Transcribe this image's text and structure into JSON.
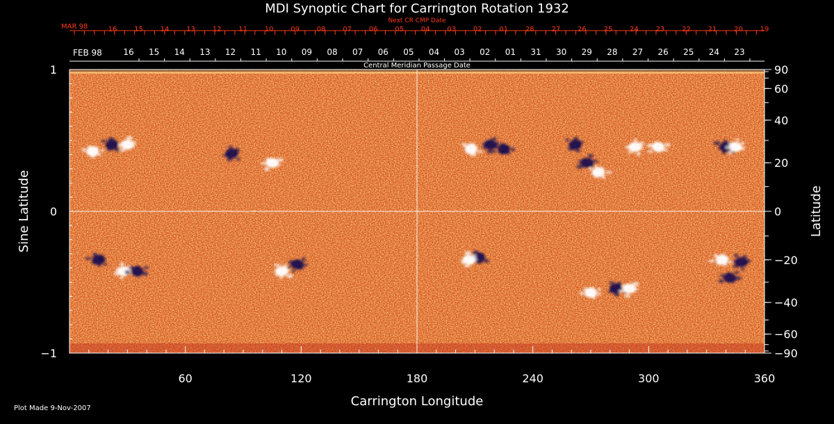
{
  "chart_data": {
    "type": "heatmap",
    "title": "MDI Synoptic Chart for Carrington Rotation 1932",
    "xlabel": "Carrington Longitude",
    "ylabel_left": "Sine Latitude",
    "ylabel_right": "Latitude",
    "xlim": [
      0,
      360
    ],
    "ylim_sine": [
      -1,
      1
    ],
    "x_ticks": [
      60,
      120,
      180,
      240,
      300,
      360
    ],
    "y_ticks_left": [
      {
        "value": 1,
        "label": "1"
      },
      {
        "value": 0,
        "label": "0"
      },
      {
        "value": -1,
        "label": "−1"
      }
    ],
    "y_ticks_right_degrees": [
      90,
      60,
      40,
      20,
      0,
      -20,
      -40,
      -60,
      -90
    ],
    "y_ticks_right_labels": [
      "90",
      "60",
      "40",
      "20",
      "0",
      "−20",
      "−40",
      "−60",
      "−90"
    ],
    "top_axis_red": {
      "label": "Next CR CMP Date",
      "month_label": "MAR 98",
      "day_labels": [
        "16",
        "15",
        "14",
        "13",
        "12",
        "11",
        "10",
        "09",
        "08",
        "07",
        "06",
        "05",
        "04",
        "03",
        "02",
        "01",
        "28",
        "27",
        "26",
        "25",
        "24",
        "23",
        "22",
        "21",
        "20",
        "19"
      ]
    },
    "top_axis_white": {
      "label": "Central Meridian Passage Date",
      "month_label": "FEB 98",
      "day_labels": [
        "16",
        "15",
        "14",
        "13",
        "12",
        "11",
        "10",
        "09",
        "08",
        "07",
        "06",
        "05",
        "04",
        "03",
        "02",
        "01",
        "31",
        "30",
        "29",
        "28",
        "27",
        "26",
        "25",
        "24",
        "23"
      ]
    },
    "grid": true,
    "colors": {
      "background": "#000000",
      "field_base": "#e4571c",
      "positive_polarity": "#ffffff",
      "negative_polarity": "#1a1050",
      "top_axis_red": "#ff3a1c",
      "gridline": "#ffffff"
    },
    "active_regions": [
      {
        "lon": 22,
        "lat": 28,
        "polarity": "negative"
      },
      {
        "lon": 30,
        "lat": 28,
        "polarity": "positive"
      },
      {
        "lon": 12,
        "lat": 25,
        "polarity": "positive"
      },
      {
        "lon": 84,
        "lat": 24,
        "polarity": "negative"
      },
      {
        "lon": 105,
        "lat": 20,
        "polarity": "positive"
      },
      {
        "lon": 15,
        "lat": -20,
        "polarity": "negative"
      },
      {
        "lon": 28,
        "lat": -25,
        "polarity": "positive"
      },
      {
        "lon": 35,
        "lat": -25,
        "polarity": "negative"
      },
      {
        "lon": 110,
        "lat": -25,
        "polarity": "positive"
      },
      {
        "lon": 118,
        "lat": -22,
        "polarity": "negative"
      },
      {
        "lon": 208,
        "lat": 26,
        "polarity": "positive"
      },
      {
        "lon": 218,
        "lat": 28,
        "polarity": "negative"
      },
      {
        "lon": 225,
        "lat": 26,
        "polarity": "negative"
      },
      {
        "lon": 262,
        "lat": 28,
        "polarity": "negative"
      },
      {
        "lon": 268,
        "lat": 20,
        "polarity": "negative"
      },
      {
        "lon": 274,
        "lat": 16,
        "polarity": "positive"
      },
      {
        "lon": 293,
        "lat": 27,
        "polarity": "positive"
      },
      {
        "lon": 305,
        "lat": 27,
        "polarity": "positive"
      },
      {
        "lon": 340,
        "lat": 27,
        "polarity": "negative"
      },
      {
        "lon": 345,
        "lat": 27,
        "polarity": "positive"
      },
      {
        "lon": 212,
        "lat": -19,
        "polarity": "negative"
      },
      {
        "lon": 207,
        "lat": -20,
        "polarity": "positive"
      },
      {
        "lon": 270,
        "lat": -35,
        "polarity": "positive"
      },
      {
        "lon": 283,
        "lat": -33,
        "polarity": "negative"
      },
      {
        "lon": 290,
        "lat": -33,
        "polarity": "positive"
      },
      {
        "lon": 338,
        "lat": -20,
        "polarity": "positive"
      },
      {
        "lon": 348,
        "lat": -21,
        "polarity": "negative"
      },
      {
        "lon": 342,
        "lat": -28,
        "polarity": "negative"
      }
    ]
  },
  "footer": {
    "plot_made": "Plot Made  9-Nov-2007"
  }
}
